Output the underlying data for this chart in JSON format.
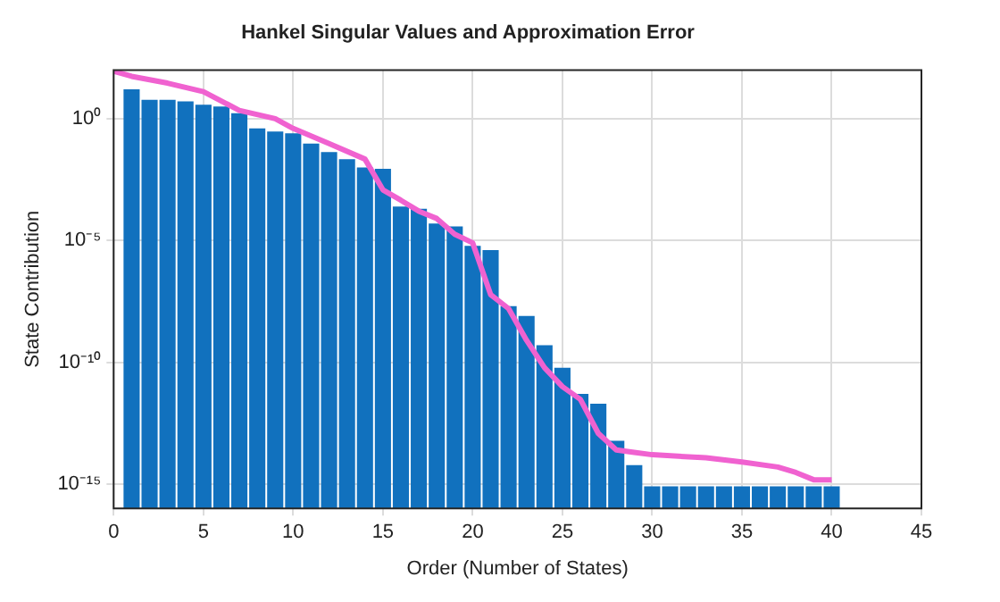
{
  "chart_data": {
    "type": "bar",
    "title": "Hankel Singular Values and Approximation Error",
    "xlabel": "Order (Number of States)",
    "ylabel": "State Contribution",
    "log": "y",
    "grid": true,
    "x": [
      1,
      2,
      3,
      4,
      5,
      6,
      7,
      8,
      9,
      10,
      11,
      12,
      13,
      14,
      15,
      16,
      17,
      18,
      19,
      20,
      21,
      22,
      23,
      24,
      25,
      26,
      27,
      28,
      29,
      30,
      31,
      32,
      33,
      34,
      35,
      36,
      37,
      38,
      39,
      40
    ],
    "series": [
      {
        "color": "#1171be",
        "values": [
          16,
          6,
          6,
          5.2,
          3.8,
          3.2,
          1.7,
          0.4,
          0.3,
          0.25,
          0.095,
          0.043,
          0.022,
          0.01,
          0.0087,
          0.00025,
          0.0002,
          5e-05,
          3.8e-05,
          6e-06,
          4e-06,
          2e-08,
          8e-09,
          5e-10,
          6e-11,
          5e-12,
          2e-12,
          6e-14,
          6e-15,
          8e-16,
          8e-16,
          8e-16,
          8e-16,
          8e-16,
          8e-16,
          8e-16,
          8e-16,
          8e-16,
          8e-16,
          8e-16
        ]
      },
      {
        "type": "line",
        "color": "#f062d0",
        "x": [
          0,
          1,
          3,
          5,
          7,
          9,
          10,
          12,
          14,
          15,
          16,
          17,
          18,
          19,
          20,
          21,
          22,
          23,
          24,
          25,
          26,
          27,
          28,
          29,
          30,
          33,
          35,
          37,
          38,
          39,
          40
        ],
        "values": [
          90,
          55,
          29,
          13,
          2.2,
          1,
          0.4,
          0.095,
          0.022,
          0.0012,
          0.00045,
          0.00016,
          8e-05,
          1.8e-05,
          8e-06,
          6e-08,
          1.6e-08,
          8e-10,
          6e-11,
          1e-11,
          3e-12,
          1.2e-13,
          2.5e-14,
          2e-14,
          1.6e-14,
          1.2e-14,
          8e-15,
          5e-15,
          3e-15,
          1.5e-15,
          1.5e-15
        ]
      }
    ],
    "xlim": [
      0,
      45
    ],
    "xticks": [
      0,
      5,
      10,
      15,
      20,
      25,
      30,
      35,
      40,
      45
    ],
    "ylim": [
      1e-16,
      100
    ],
    "yticks": [
      {
        "value": 1e-15,
        "label": "10⁻¹⁵"
      },
      {
        "value": 1e-10,
        "label": "10⁻¹⁰"
      },
      {
        "value": 1e-05,
        "label": "10⁻⁵"
      },
      {
        "value": 1,
        "label": "10⁰"
      }
    ]
  }
}
